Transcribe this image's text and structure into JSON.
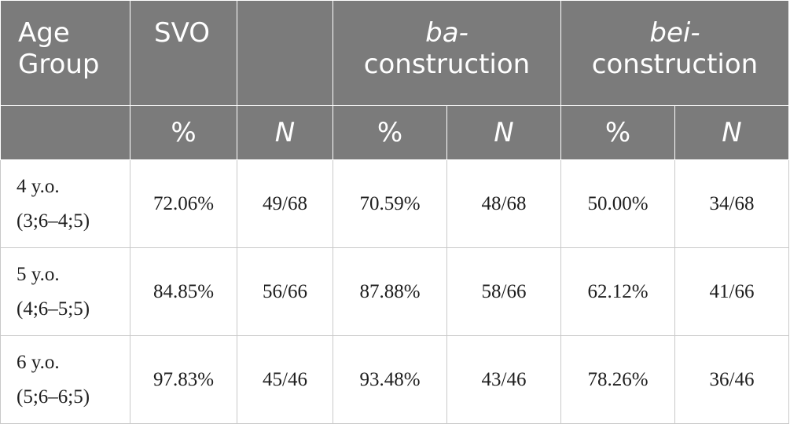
{
  "table": {
    "header": {
      "age_group": "Age Group",
      "svo": "SVO",
      "ba_word": "ba-",
      "ba_rest": "construction",
      "bei_word": "bei-",
      "bei_rest": "construction",
      "pct": "%",
      "n": "N"
    },
    "rows": [
      {
        "age": "4 y.o.",
        "range": "(3;6–4;5)",
        "svo_pct": "72.06%",
        "svo_n": "49/68",
        "ba_pct": "70.59%",
        "ba_n": "48/68",
        "bei_pct": "50.00%",
        "bei_n": "34/68"
      },
      {
        "age": "5 y.o.",
        "range": "(4;6–5;5)",
        "svo_pct": "84.85%",
        "svo_n": "56/66",
        "ba_pct": "87.88%",
        "ba_n": "58/66",
        "bei_pct": "62.12%",
        "bei_n": "41/66"
      },
      {
        "age": "6 y.o.",
        "range": "(5;6–6;5)",
        "svo_pct": "97.83%",
        "svo_n": "45/46",
        "ba_pct": "93.48%",
        "ba_n": "43/46",
        "bei_pct": "78.26%",
        "bei_n": "36/46"
      }
    ]
  },
  "colors": {
    "header_bg": "#7b7b7b",
    "header_text": "#ffffff",
    "grid_line": "#c9c9c9",
    "body_text": "#1e1e1e"
  }
}
